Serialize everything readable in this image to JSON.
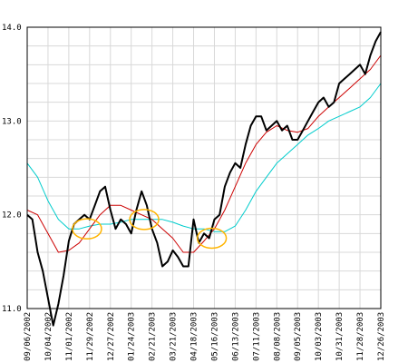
{
  "chart_data": {
    "type": "line",
    "title": "",
    "xlabel": "",
    "ylabel": "",
    "ylim": [
      11.0,
      14.0
    ],
    "grid": true,
    "legend": "none",
    "yticks": [
      "11.0",
      "12.0",
      "13.0",
      "14.0"
    ],
    "x_tick_labels": [
      "09/06/2002",
      "10/04/2002",
      "11/01/2002",
      "11/29/2002",
      "12/27/2002",
      "01/24/2003",
      "02/21/2003",
      "03/21/2003",
      "04/18/2003",
      "05/16/2003",
      "06/13/2003",
      "07/11/2003",
      "08/08/2003",
      "09/05/2003",
      "10/03/2003",
      "10/31/2003",
      "11/28/2003",
      "12/26/2003"
    ],
    "x_last_tick": "12/26/2003",
    "x_index_max": 68,
    "series": [
      {
        "key": "price",
        "color": "#000000",
        "width": 2,
        "values": [
          [
            0,
            12.0
          ],
          [
            1,
            11.95
          ],
          [
            2,
            11.6
          ],
          [
            3,
            11.4
          ],
          [
            5,
            10.82
          ],
          [
            6,
            11.05
          ],
          [
            7,
            11.35
          ],
          [
            8,
            11.72
          ],
          [
            9,
            11.9
          ],
          [
            10,
            11.95
          ],
          [
            11,
            12.0
          ],
          [
            12,
            11.95
          ],
          [
            13,
            12.1
          ],
          [
            14,
            12.25
          ],
          [
            15,
            12.3
          ],
          [
            16,
            12.05
          ],
          [
            17,
            11.85
          ],
          [
            18,
            11.95
          ],
          [
            19,
            11.9
          ],
          [
            20,
            11.8
          ],
          [
            21,
            12.05
          ],
          [
            22,
            12.25
          ],
          [
            23,
            12.1
          ],
          [
            24,
            11.85
          ],
          [
            25,
            11.7
          ],
          [
            26,
            11.45
          ],
          [
            27,
            11.5
          ],
          [
            28,
            11.62
          ],
          [
            29,
            11.55
          ],
          [
            30,
            11.45
          ],
          [
            31,
            11.45
          ],
          [
            32,
            11.95
          ],
          [
            33,
            11.7
          ],
          [
            34,
            11.8
          ],
          [
            35,
            11.75
          ],
          [
            36,
            11.95
          ],
          [
            37,
            12.0
          ],
          [
            38,
            12.3
          ],
          [
            39,
            12.45
          ],
          [
            40,
            12.55
          ],
          [
            41,
            12.5
          ],
          [
            42,
            12.75
          ],
          [
            43,
            12.95
          ],
          [
            44,
            13.05
          ],
          [
            45,
            13.05
          ],
          [
            46,
            12.9
          ],
          [
            47,
            12.95
          ],
          [
            48,
            13.0
          ],
          [
            49,
            12.9
          ],
          [
            50,
            12.95
          ],
          [
            51,
            12.8
          ],
          [
            52,
            12.8
          ],
          [
            53,
            12.9
          ],
          [
            54,
            13.0
          ],
          [
            55,
            13.1
          ],
          [
            56,
            13.2
          ],
          [
            57,
            13.25
          ],
          [
            58,
            13.15
          ],
          [
            59,
            13.2
          ],
          [
            60,
            13.4
          ],
          [
            61,
            13.45
          ],
          [
            62,
            13.5
          ],
          [
            63,
            13.55
          ],
          [
            64,
            13.6
          ],
          [
            65,
            13.5
          ],
          [
            66,
            13.7
          ],
          [
            67,
            13.85
          ],
          [
            68,
            13.95
          ]
        ]
      },
      {
        "key": "moving-average-short",
        "color": "#cc0000",
        "width": 1,
        "values": [
          [
            0,
            12.05
          ],
          [
            2,
            12.0
          ],
          [
            4,
            11.8
          ],
          [
            6,
            11.6
          ],
          [
            8,
            11.62
          ],
          [
            10,
            11.7
          ],
          [
            12,
            11.85
          ],
          [
            14,
            12.0
          ],
          [
            16,
            12.1
          ],
          [
            18,
            12.1
          ],
          [
            20,
            12.05
          ],
          [
            22,
            12.0
          ],
          [
            24,
            11.95
          ],
          [
            26,
            11.85
          ],
          [
            28,
            11.75
          ],
          [
            30,
            11.6
          ],
          [
            32,
            11.6
          ],
          [
            34,
            11.72
          ],
          [
            36,
            11.85
          ],
          [
            38,
            12.05
          ],
          [
            40,
            12.3
          ],
          [
            42,
            12.55
          ],
          [
            44,
            12.75
          ],
          [
            46,
            12.88
          ],
          [
            48,
            12.95
          ],
          [
            50,
            12.9
          ],
          [
            52,
            12.88
          ],
          [
            54,
            12.92
          ],
          [
            56,
            13.05
          ],
          [
            58,
            13.15
          ],
          [
            60,
            13.25
          ],
          [
            62,
            13.35
          ],
          [
            64,
            13.45
          ],
          [
            66,
            13.55
          ],
          [
            68,
            13.7
          ]
        ]
      },
      {
        "key": "moving-average-long",
        "color": "#00cccc",
        "width": 1,
        "values": [
          [
            0,
            12.55
          ],
          [
            2,
            12.4
          ],
          [
            4,
            12.15
          ],
          [
            6,
            11.95
          ],
          [
            8,
            11.85
          ],
          [
            10,
            11.85
          ],
          [
            12,
            11.88
          ],
          [
            14,
            11.9
          ],
          [
            16,
            11.9
          ],
          [
            18,
            11.92
          ],
          [
            20,
            11.95
          ],
          [
            22,
            11.95
          ],
          [
            24,
            11.95
          ],
          [
            26,
            11.95
          ],
          [
            28,
            11.92
          ],
          [
            30,
            11.88
          ],
          [
            32,
            11.85
          ],
          [
            34,
            11.85
          ],
          [
            36,
            11.82
          ],
          [
            38,
            11.82
          ],
          [
            40,
            11.88
          ],
          [
            42,
            12.05
          ],
          [
            44,
            12.25
          ],
          [
            46,
            12.4
          ],
          [
            48,
            12.55
          ],
          [
            50,
            12.65
          ],
          [
            52,
            12.75
          ],
          [
            54,
            12.85
          ],
          [
            56,
            12.92
          ],
          [
            58,
            13.0
          ],
          [
            60,
            13.05
          ],
          [
            62,
            13.1
          ],
          [
            64,
            13.15
          ],
          [
            66,
            13.25
          ],
          [
            68,
            13.4
          ]
        ]
      }
    ],
    "markers": [
      {
        "x": 11.5,
        "y": 11.85,
        "color": "#ffb400"
      },
      {
        "x": 22.5,
        "y": 11.95,
        "color": "#ffb400"
      },
      {
        "x": 35.5,
        "y": 11.75,
        "color": "#ffb400"
      }
    ]
  }
}
